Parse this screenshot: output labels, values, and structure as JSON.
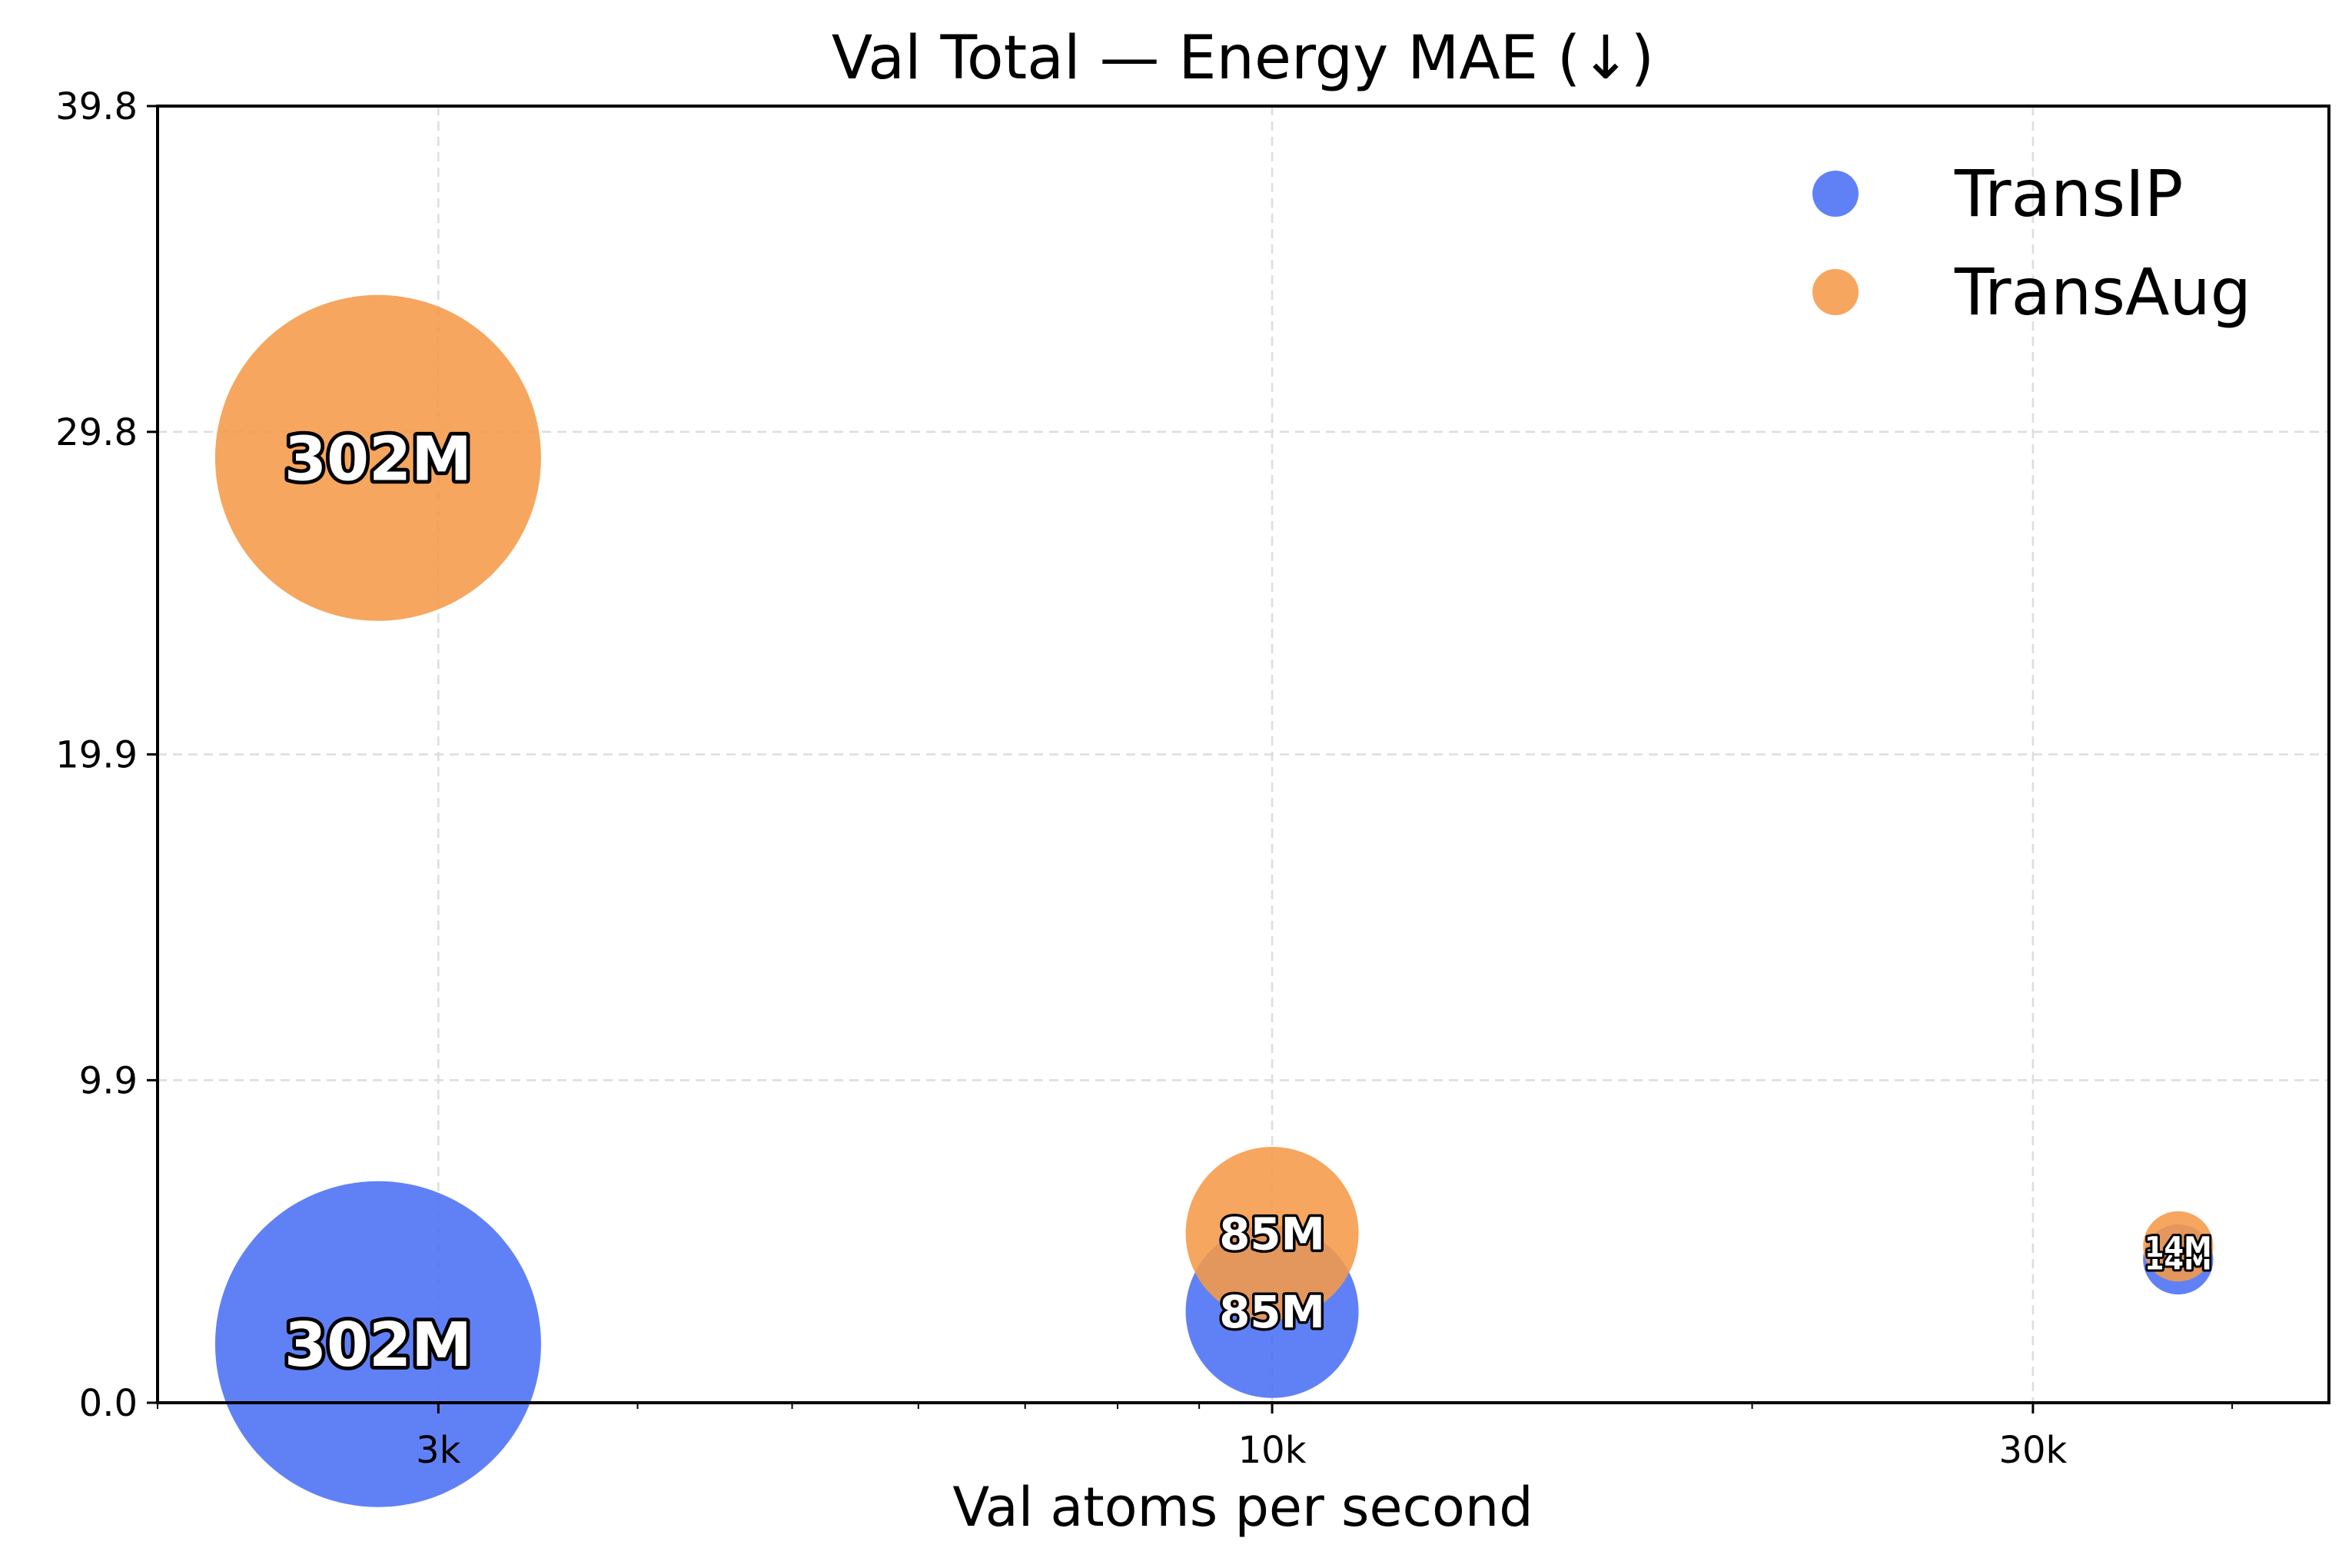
{
  "chart_data": {
    "type": "scatter",
    "title": "Val Total — Energy MAE (↓)",
    "xlabel": "Val atoms per second",
    "ylabel": "",
    "xscale": "log",
    "xlim": [
      2000,
      46000
    ],
    "ylim": [
      0.0,
      39.8
    ],
    "xticks": [
      {
        "value": 3000,
        "label": "3k"
      },
      {
        "value": 10000,
        "label": "10k"
      },
      {
        "value": 30000,
        "label": "30k"
      }
    ],
    "yticks": [
      {
        "value": 0.0,
        "label": "0.0"
      },
      {
        "value": 9.9,
        "label": "9.9"
      },
      {
        "value": 19.9,
        "label": "19.9"
      },
      {
        "value": 29.8,
        "label": "29.8"
      },
      {
        "value": 39.8,
        "label": "39.8"
      }
    ],
    "grid": true,
    "legend_position": "top-right",
    "size_encoding": "model parameters",
    "series": [
      {
        "name": "TransIP",
        "color": "#4a70f5",
        "points": [
          {
            "x": 2750,
            "y": 1.8,
            "size_m": 302,
            "label": "302M"
          },
          {
            "x": 10000,
            "y": 2.8,
            "size_m": 85,
            "label": "85M"
          },
          {
            "x": 37000,
            "y": 4.4,
            "size_m": 14,
            "label": "14M"
          }
        ]
      },
      {
        "name": "TransAug",
        "color": "#f59a48",
        "points": [
          {
            "x": 2750,
            "y": 29.0,
            "size_m": 302,
            "label": "302M"
          },
          {
            "x": 10000,
            "y": 5.2,
            "size_m": 85,
            "label": "85M"
          },
          {
            "x": 37000,
            "y": 4.8,
            "size_m": 14,
            "label": "14M"
          }
        ]
      }
    ]
  }
}
